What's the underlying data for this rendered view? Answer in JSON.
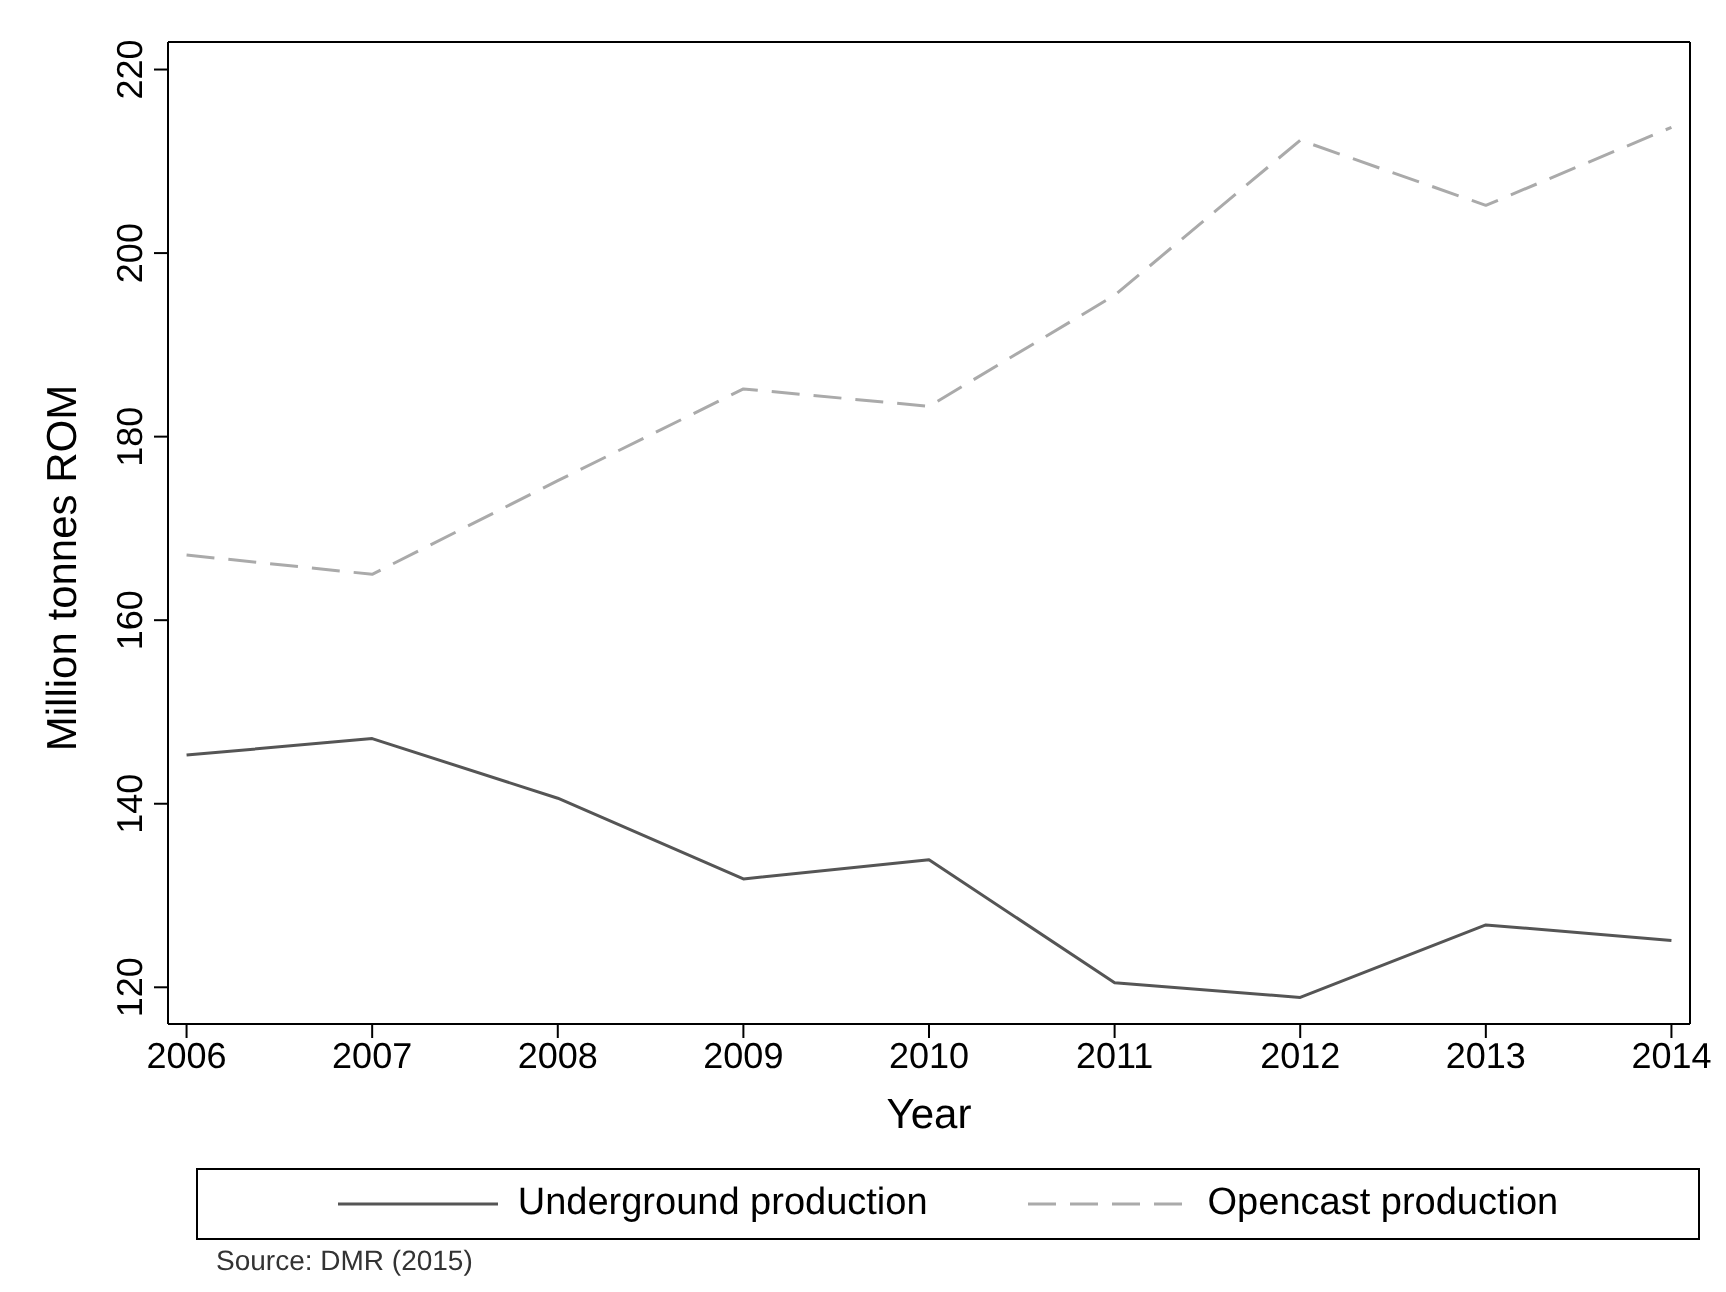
{
  "chart_data": {
    "type": "line",
    "xlabel": "Year",
    "ylabel": "Million tonnes ROM",
    "x": [
      2006,
      2007,
      2008,
      2009,
      2010,
      2011,
      2012,
      2013,
      2014
    ],
    "xlim": [
      2005.9,
      2014.1
    ],
    "xticks": [
      2006,
      2007,
      2008,
      2009,
      2010,
      2011,
      2012,
      2013,
      2014
    ],
    "ylim": [
      116,
      223
    ],
    "yticks": [
      120,
      140,
      160,
      180,
      200,
      220
    ],
    "series": [
      {
        "name": "Underground production",
        "color": "#555555",
        "line_style": "solid",
        "values": [
          145.3,
          147.1,
          140.6,
          131.8,
          133.9,
          120.5,
          118.9,
          126.8,
          125.1
        ]
      },
      {
        "name": "Opencast production",
        "color": "#aaaaaa",
        "line_style": "dashed",
        "values": [
          167.1,
          165,
          175.2,
          185.2,
          183.3,
          195.4,
          212.3,
          205.2,
          213.7
        ]
      }
    ],
    "grid": false,
    "legend": "bottom",
    "marker": "none",
    "annotations": [
      "Source: DMR (2015)"
    ]
  }
}
